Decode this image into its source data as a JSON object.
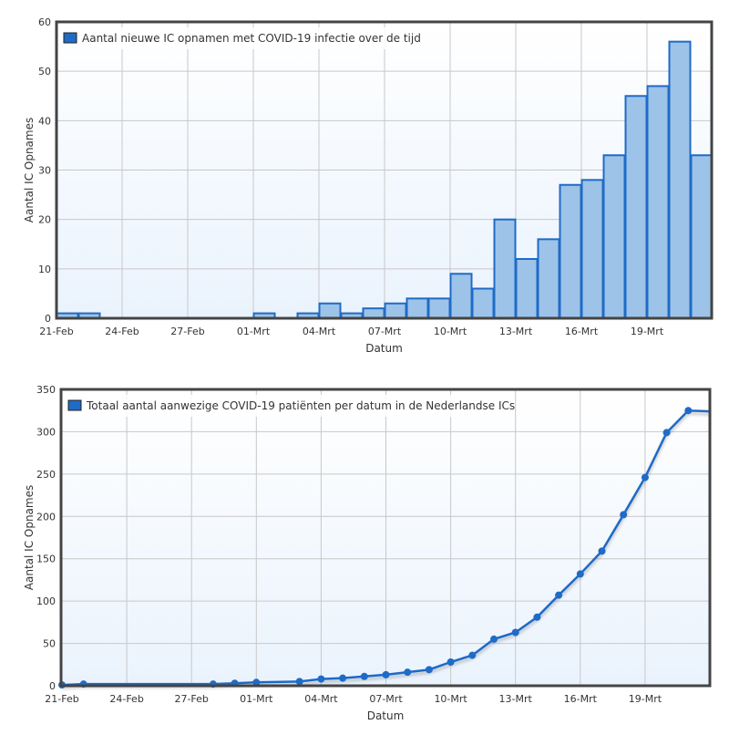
{
  "colors": {
    "bar_fill": "#9dc3e8",
    "bar_stroke": "#1f6bc7",
    "line": "#1f6bc7",
    "legend_swatch": "#1f6bc7",
    "grid": "#c8c8c8",
    "frame": "#444444"
  },
  "chart_data": [
    {
      "type": "bar",
      "legend": "Aantal nieuwe IC opnamen met COVID-19 infectie over de tijd",
      "legend_placement": "top-left",
      "xlabel": "Datum",
      "ylabel": "Aantal IC Opnames",
      "ylim": [
        0,
        60
      ],
      "yticks": [
        0,
        10,
        20,
        30,
        40,
        50,
        60
      ],
      "grid": true,
      "xticks": [
        "21-Feb",
        "24-Feb",
        "27-Feb",
        "01-Mrt",
        "04-Mrt",
        "07-Mrt",
        "10-Mrt",
        "13-Mrt",
        "16-Mrt",
        "19-Mrt"
      ],
      "categories": [
        "21-Feb",
        "22-Feb",
        "23-Feb",
        "24-Feb",
        "25-Feb",
        "26-Feb",
        "27-Feb",
        "28-Feb",
        "29-Feb",
        "01-Mrt",
        "02-Mrt",
        "03-Mrt",
        "04-Mrt",
        "05-Mrt",
        "06-Mrt",
        "07-Mrt",
        "08-Mrt",
        "09-Mrt",
        "10-Mrt",
        "11-Mrt",
        "12-Mrt",
        "13-Mrt",
        "14-Mrt",
        "15-Mrt",
        "16-Mrt",
        "17-Mrt",
        "18-Mrt",
        "19-Mrt",
        "20-Mrt",
        "21-Mrt"
      ],
      "values": [
        1,
        1,
        0,
        0,
        0,
        0,
        0,
        0,
        0,
        1,
        0,
        1,
        3,
        1,
        2,
        3,
        4,
        4,
        9,
        6,
        20,
        12,
        16,
        27,
        28,
        33,
        45,
        47,
        56,
        33
      ]
    },
    {
      "type": "line",
      "legend": "Totaal aantal aanwezige COVID-19 patiënten per datum in de Nederlandse ICs",
      "legend_placement": "top-left",
      "xlabel": "Datum",
      "ylabel": "Aantal IC Opnames",
      "ylim": [
        0,
        350
      ],
      "yticks": [
        0,
        50,
        100,
        150,
        200,
        250,
        300,
        350
      ],
      "grid": true,
      "xticks": [
        "21-Feb",
        "24-Feb",
        "27-Feb",
        "01-Mrt",
        "04-Mrt",
        "07-Mrt",
        "10-Mrt",
        "13-Mrt",
        "16-Mrt",
        "19-Mrt"
      ],
      "points": [
        {
          "x": "21-Feb",
          "y": 1
        },
        {
          "x": "22-Feb",
          "y": 2
        },
        {
          "x": "28-Feb",
          "y": 2
        },
        {
          "x": "29-Feb",
          "y": 3
        },
        {
          "x": "01-Mrt",
          "y": 4
        },
        {
          "x": "03-Mrt",
          "y": 5
        },
        {
          "x": "04-Mrt",
          "y": 8
        },
        {
          "x": "05-Mrt",
          "y": 9
        },
        {
          "x": "06-Mrt",
          "y": 11
        },
        {
          "x": "07-Mrt",
          "y": 13
        },
        {
          "x": "08-Mrt",
          "y": 16
        },
        {
          "x": "09-Mrt",
          "y": 19
        },
        {
          "x": "10-Mrt",
          "y": 28
        },
        {
          "x": "11-Mrt",
          "y": 36
        },
        {
          "x": "12-Mrt",
          "y": 55
        },
        {
          "x": "13-Mrt",
          "y": 63
        },
        {
          "x": "14-Mrt",
          "y": 81
        },
        {
          "x": "15-Mrt",
          "y": 107
        },
        {
          "x": "16-Mrt",
          "y": 132
        },
        {
          "x": "17-Mrt",
          "y": 159
        },
        {
          "x": "18-Mrt",
          "y": 202
        },
        {
          "x": "19-Mrt",
          "y": 246
        },
        {
          "x": "20-Mrt",
          "y": 299
        },
        {
          "x": "21-Mrt",
          "y": 325
        }
      ],
      "trailing_value": {
        "x": "22-Mrt",
        "y": 324
      }
    }
  ]
}
